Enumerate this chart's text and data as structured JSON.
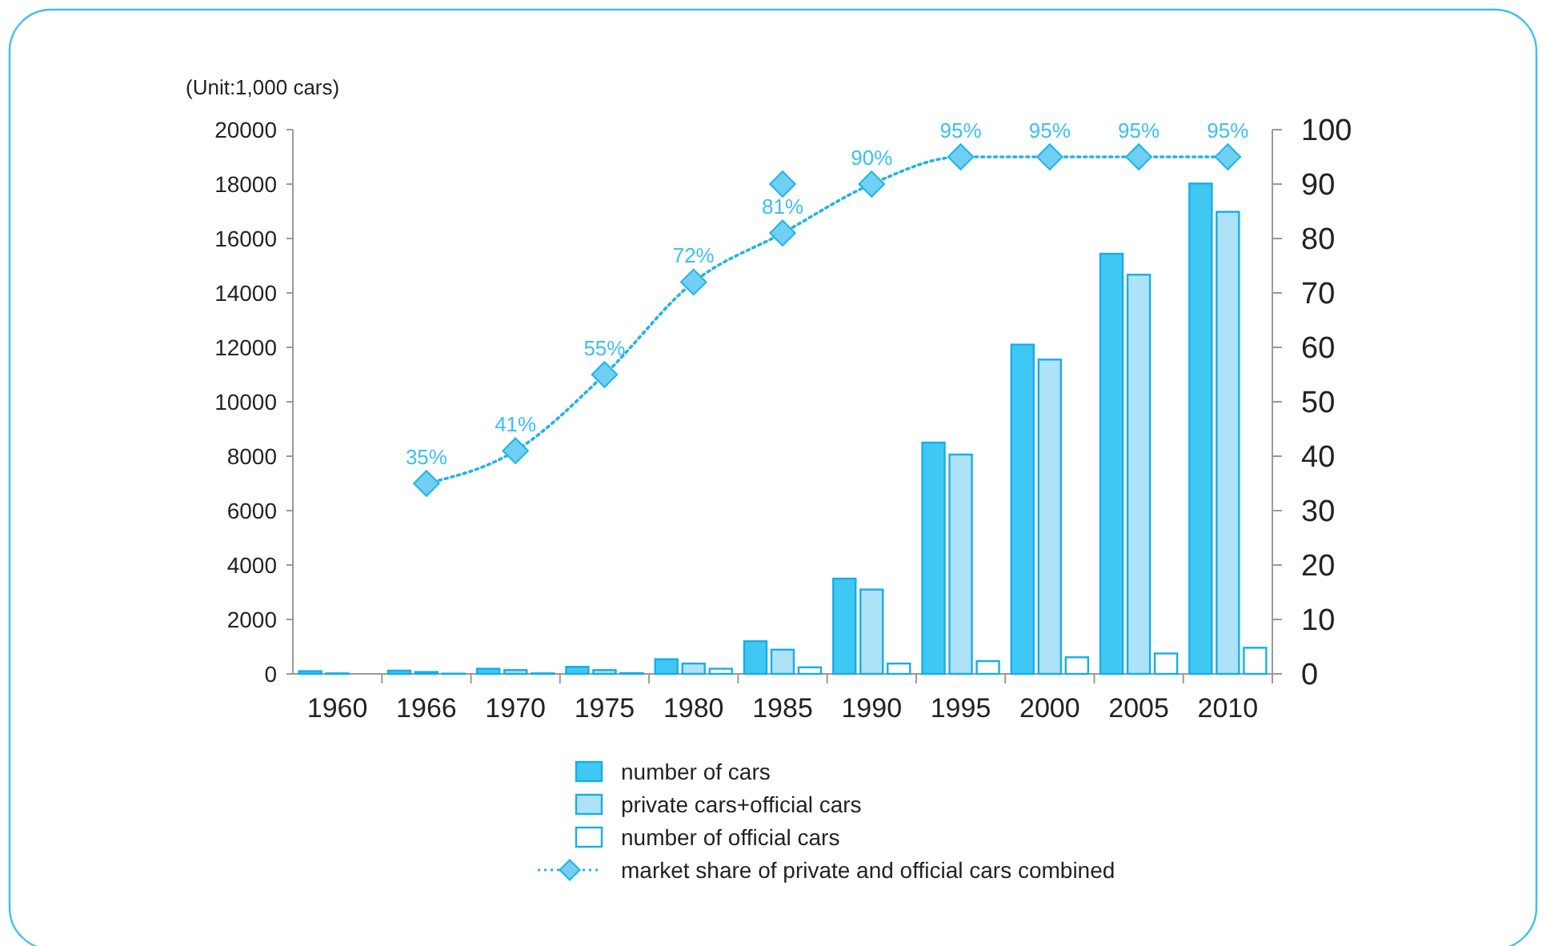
{
  "chart_data": {
    "type": "bar",
    "ylabel": "(Unit:1,000 cars)",
    "categories": [
      "1960",
      "1966",
      "1970",
      "1975",
      "1980",
      "1985",
      "1990",
      "1995",
      "2000",
      "2005",
      "2010"
    ],
    "series": [
      {
        "name": "number of cars",
        "color": "#40c8f4",
        "values": [
          100,
          120,
          190,
          260,
          540,
          1200,
          3500,
          8500,
          12100,
          15440,
          18020
        ]
      },
      {
        "name": "private cars+official cars",
        "color": "#aee2f8",
        "values": [
          20,
          70,
          140,
          140,
          380,
          890,
          3100,
          8060,
          11550,
          14670,
          16980
        ]
      },
      {
        "name": "number of official cars",
        "color": "#ffffff",
        "values": [
          0,
          10,
          20,
          30,
          190,
          240,
          380,
          470,
          610,
          750,
          960
        ]
      },
      {
        "name": "market share of private and official cars combined",
        "type": "line",
        "axis": "y2",
        "color": "#20b4e8",
        "marker": "diamond",
        "line_style": "dotted",
        "values": [
          null,
          35,
          41,
          55,
          72,
          81,
          90,
          95,
          95,
          95,
          95
        ],
        "value_labels": [
          null,
          "35%",
          "41%",
          "55%",
          "72%",
          "81%",
          "90%",
          "95%",
          "95%",
          "95%",
          "95%"
        ]
      },
      {
        "type": "scatter",
        "axis": "y2",
        "color": "#6fcff4",
        "marker": "diamond",
        "values": [
          null,
          null,
          null,
          null,
          null,
          90,
          null,
          null,
          null,
          null,
          null
        ]
      }
    ],
    "ylim": [
      0,
      20000
    ],
    "yticks": [
      0,
      2000,
      4000,
      6000,
      8000,
      10000,
      12000,
      14000,
      16000,
      18000,
      20000
    ],
    "y2lim": [
      0,
      100
    ],
    "y2ticks": [
      0,
      10,
      20,
      30,
      40,
      50,
      60,
      70,
      80,
      90,
      100
    ],
    "grid": false,
    "legend": "bottom"
  }
}
